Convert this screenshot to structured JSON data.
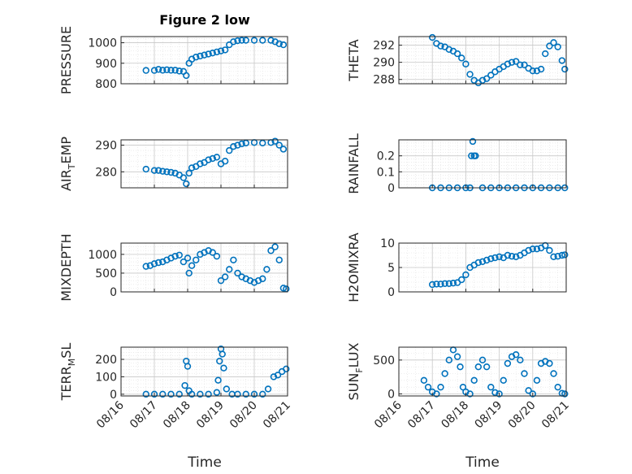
{
  "title": "Figure 2 low",
  "xlabel": "Time",
  "x_ticks": [
    "08/16",
    "08/17",
    "08/18",
    "08/19",
    "08/20",
    "08/21"
  ],
  "marker_color": "#0072BD",
  "chart_data": [
    {
      "type": "scatter",
      "ylabel": "PRESSURE",
      "ylim": [
        800,
        1030
      ],
      "yticks": [
        "800",
        "900",
        "1000"
      ],
      "grid": "dotted",
      "series": [
        {
          "x": [
            "08/16 18:00",
            "08/17 00:00",
            "08/17 03:00",
            "08/17 06:00",
            "08/17 09:00",
            "08/17 12:00",
            "08/17 15:00",
            "08/17 18:00",
            "08/17 21:00",
            "08/17 23:00",
            "08/18 01:00",
            "08/18 03:00",
            "08/18 06:00",
            "08/18 09:00",
            "08/18 12:00",
            "08/18 15:00",
            "08/18 18:00",
            "08/18 21:00",
            "08/19 00:00",
            "08/19 03:00",
            "08/19 06:00",
            "08/19 09:00",
            "08/19 12:00",
            "08/19 15:00",
            "08/19 18:00",
            "08/20 00:00",
            "08/20 06:00",
            "08/20 12:00",
            "08/20 15:00",
            "08/20 18:00",
            "08/20 21:00"
          ],
          "y": [
            865,
            865,
            870,
            866,
            868,
            866,
            866,
            862,
            860,
            840,
            900,
            920,
            930,
            935,
            940,
            945,
            950,
            955,
            960,
            965,
            990,
            1005,
            1010,
            1012,
            1012,
            1012,
            1012,
            1012,
            1005,
            995,
            990
          ]
        }
      ]
    },
    {
      "type": "scatter",
      "ylabel": "THETA",
      "ylim": [
        287.5,
        293
      ],
      "yticks": [
        "288",
        "290",
        "292"
      ],
      "grid": "dotted",
      "series": [
        {
          "x": [
            "08/17 00:00",
            "08/17 03:00",
            "08/17 06:00",
            "08/17 09:00",
            "08/17 12:00",
            "08/17 15:00",
            "08/17 18:00",
            "08/17 21:00",
            "08/18 00:00",
            "08/18 03:00",
            "08/18 06:00",
            "08/18 09:00",
            "08/18 12:00",
            "08/18 15:00",
            "08/18 18:00",
            "08/18 21:00",
            "08/19 00:00",
            "08/19 03:00",
            "08/19 06:00",
            "08/19 09:00",
            "08/19 12:00",
            "08/19 15:00",
            "08/19 18:00",
            "08/19 21:00",
            "08/20 00:00",
            "08/20 03:00",
            "08/20 06:00",
            "08/20 09:00",
            "08/20 12:00",
            "08/20 15:00",
            "08/20 18:00",
            "08/20 21:00",
            "08/20 23:00"
          ],
          "y": [
            292.9,
            292.2,
            291.9,
            291.8,
            291.5,
            291.3,
            291.0,
            290.5,
            289.8,
            288.6,
            287.9,
            287.6,
            287.9,
            288.1,
            288.5,
            288.9,
            289.2,
            289.5,
            289.8,
            290.0,
            290.1,
            289.7,
            289.7,
            289.3,
            289.0,
            289.0,
            289.2,
            291.0,
            291.9,
            292.3,
            291.8,
            290.2,
            289.2
          ]
        }
      ]
    },
    {
      "type": "scatter",
      "ylabel": "AIR_TEMP",
      "ylim": [
        274,
        292
      ],
      "yticks": [
        "280",
        "290"
      ],
      "grid": "dotted",
      "series": [
        {
          "x": [
            "08/16 18:00",
            "08/17 00:00",
            "08/17 03:00",
            "08/17 06:00",
            "08/17 09:00",
            "08/17 12:00",
            "08/17 15:00",
            "08/17 18:00",
            "08/17 21:00",
            "08/17 23:00",
            "08/18 01:00",
            "08/18 03:00",
            "08/18 06:00",
            "08/18 09:00",
            "08/18 12:00",
            "08/18 15:00",
            "08/18 18:00",
            "08/18 21:00",
            "08/19 00:00",
            "08/19 03:00",
            "08/19 06:00",
            "08/19 09:00",
            "08/19 12:00",
            "08/19 15:00",
            "08/19 18:00",
            "08/20 00:00",
            "08/20 06:00",
            "08/20 12:00",
            "08/20 15:00",
            "08/20 18:00",
            "08/20 21:00"
          ],
          "y": [
            281,
            280.5,
            280.5,
            280.2,
            280.0,
            279.8,
            279.5,
            278.8,
            277.8,
            275.5,
            279.5,
            281.5,
            282.0,
            283.0,
            283.5,
            284.5,
            285.0,
            285.5,
            283.0,
            284.0,
            288.0,
            289.5,
            290.0,
            290.5,
            290.8,
            291.0,
            290.8,
            291.0,
            291.5,
            290.0,
            288.5
          ]
        }
      ]
    },
    {
      "type": "scatter",
      "ylabel": "RAINFALL",
      "ylim": [
        0,
        0.3
      ],
      "yticks": [
        "0",
        "0.1",
        "0.2"
      ],
      "grid": "dotted",
      "series": [
        {
          "x": [
            "08/17 00:00",
            "08/17 06:00",
            "08/17 12:00",
            "08/17 18:00",
            "08/18 00:00",
            "08/18 03:00",
            "08/18 04:00",
            "08/18 05:00",
            "08/18 06:00",
            "08/18 07:00",
            "08/18 12:00",
            "08/18 18:00",
            "08/19 00:00",
            "08/19 06:00",
            "08/19 12:00",
            "08/19 18:00",
            "08/20 00:00",
            "08/20 06:00",
            "08/20 12:00",
            "08/20 18:00",
            "08/20 23:00"
          ],
          "y": [
            0,
            0,
            0,
            0,
            0,
            0,
            0.2,
            0.29,
            0.2,
            0.2,
            0,
            0,
            0,
            0,
            0,
            0,
            0,
            0,
            0,
            0,
            0
          ]
        }
      ]
    },
    {
      "type": "scatter",
      "ylabel": "MIXDEPTH",
      "ylim": [
        0,
        1300
      ],
      "yticks": [
        "0",
        "500",
        "1000"
      ],
      "grid": "dotted",
      "series": [
        {
          "x": [
            "08/16 18:00",
            "08/16 21:00",
            "08/17 00:00",
            "08/17 03:00",
            "08/17 06:00",
            "08/17 09:00",
            "08/17 12:00",
            "08/17 15:00",
            "08/17 18:00",
            "08/17 21:00",
            "08/18 00:00",
            "08/18 01:00",
            "08/18 03:00",
            "08/18 06:00",
            "08/18 09:00",
            "08/18 12:00",
            "08/18 15:00",
            "08/18 18:00",
            "08/18 21:00",
            "08/19 00:00",
            "08/19 03:00",
            "08/19 06:00",
            "08/19 09:00",
            "08/19 12:00",
            "08/19 15:00",
            "08/19 18:00",
            "08/19 21:00",
            "08/20 00:00",
            "08/20 03:00",
            "08/20 06:00",
            "08/20 09:00",
            "08/20 12:00",
            "08/20 15:00",
            "08/20 18:00",
            "08/20 21:00",
            "08/20 23:00"
          ],
          "y": [
            680,
            700,
            750,
            780,
            800,
            850,
            900,
            950,
            980,
            800,
            900,
            500,
            700,
            850,
            1000,
            1050,
            1100,
            1050,
            950,
            300,
            400,
            600,
            850,
            500,
            400,
            350,
            300,
            250,
            300,
            350,
            600,
            1100,
            1200,
            850,
            100,
            80
          ]
        }
      ]
    },
    {
      "type": "scatter",
      "ylabel": "H2OMIXRA",
      "ylim": [
        0,
        10
      ],
      "yticks": [
        "0",
        "5",
        "10"
      ],
      "grid": "dotted",
      "series": [
        {
          "x": [
            "08/17 00:00",
            "08/17 03:00",
            "08/17 06:00",
            "08/17 09:00",
            "08/17 12:00",
            "08/17 15:00",
            "08/17 18:00",
            "08/17 21:00",
            "08/18 00:00",
            "08/18 03:00",
            "08/18 06:00",
            "08/18 09:00",
            "08/18 12:00",
            "08/18 15:00",
            "08/18 18:00",
            "08/18 21:00",
            "08/19 00:00",
            "08/19 03:00",
            "08/19 06:00",
            "08/19 09:00",
            "08/19 12:00",
            "08/19 15:00",
            "08/19 18:00",
            "08/19 21:00",
            "08/20 00:00",
            "08/20 03:00",
            "08/20 06:00",
            "08/20 09:00",
            "08/20 12:00",
            "08/20 15:00",
            "08/20 18:00",
            "08/20 21:00",
            "08/20 23:00"
          ],
          "y": [
            1.5,
            1.6,
            1.6,
            1.7,
            1.7,
            1.8,
            1.9,
            2.5,
            3.5,
            5.0,
            5.5,
            6.0,
            6.2,
            6.5,
            6.8,
            7.0,
            7.2,
            7.0,
            7.5,
            7.3,
            7.2,
            7.5,
            8.0,
            8.5,
            8.8,
            8.8,
            9.0,
            9.5,
            8.5,
            7.2,
            7.3,
            7.5,
            7.6
          ]
        }
      ]
    },
    {
      "type": "scatter",
      "ylabel": "TERR_MSL",
      "ylim": [
        -10,
        270
      ],
      "yticks": [
        "0",
        "100",
        "200"
      ],
      "grid": "dotted",
      "series": [
        {
          "x": [
            "08/16 18:00",
            "08/17 00:00",
            "08/17 06:00",
            "08/17 12:00",
            "08/17 18:00",
            "08/17 22:00",
            "08/17 23:00",
            "08/18 00:00",
            "08/18 01:00",
            "08/18 03:00",
            "08/18 09:00",
            "08/18 15:00",
            "08/18 21:00",
            "08/18 22:00",
            "08/18 23:00",
            "08/19 00:00",
            "08/19 01:00",
            "08/19 02:00",
            "08/19 04:00",
            "08/19 08:00",
            "08/19 12:00",
            "08/19 18:00",
            "08/20 00:00",
            "08/20 06:00",
            "08/20 10:00",
            "08/20 14:00",
            "08/20 17:00",
            "08/20 20:00",
            "08/20 23:00"
          ],
          "y": [
            0,
            0,
            0,
            0,
            0,
            50,
            190,
            160,
            20,
            0,
            0,
            0,
            10,
            80,
            190,
            260,
            230,
            150,
            30,
            0,
            0,
            0,
            0,
            0,
            30,
            100,
            110,
            130,
            145
          ]
        }
      ]
    },
    {
      "type": "scatter",
      "ylabel": "SUN_FLUX",
      "ylim": [
        -30,
        690
      ],
      "yticks": [
        "0",
        "500"
      ],
      "grid": "dotted",
      "series": [
        {
          "x": [
            "08/16 18:00",
            "08/16 21:00",
            "08/17 00:00",
            "08/17 03:00",
            "08/17 06:00",
            "08/17 09:00",
            "08/17 12:00",
            "08/17 15:00",
            "08/17 18:00",
            "08/17 20:00",
            "08/17 22:00",
            "08/18 00:00",
            "08/18 03:00",
            "08/18 06:00",
            "08/18 09:00",
            "08/18 12:00",
            "08/18 15:00",
            "08/18 18:00",
            "08/18 21:00",
            "08/19 00:00",
            "08/19 03:00",
            "08/19 06:00",
            "08/19 09:00",
            "08/19 12:00",
            "08/19 15:00",
            "08/19 18:00",
            "08/19 21:00",
            "08/20 00:00",
            "08/20 03:00",
            "08/20 06:00",
            "08/20 09:00",
            "08/20 12:00",
            "08/20 15:00",
            "08/20 18:00",
            "08/20 21:00",
            "08/20 23:00"
          ],
          "y": [
            200,
            100,
            30,
            0,
            100,
            300,
            500,
            650,
            550,
            400,
            100,
            30,
            0,
            200,
            400,
            500,
            400,
            100,
            20,
            0,
            200,
            450,
            550,
            580,
            500,
            300,
            50,
            0,
            200,
            450,
            480,
            450,
            300,
            100,
            10,
            0
          ]
        }
      ]
    }
  ]
}
